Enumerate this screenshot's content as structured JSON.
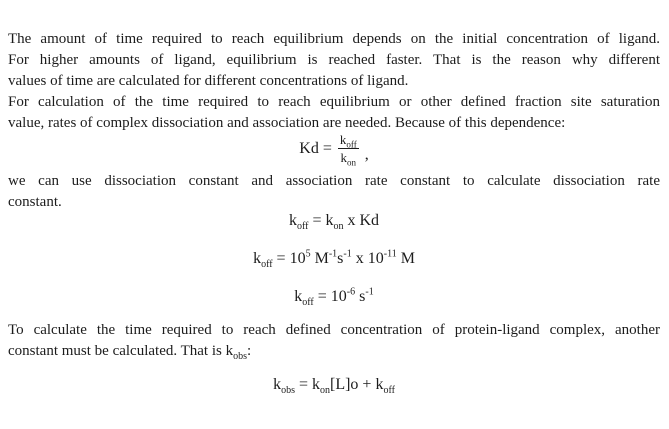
{
  "colors": {
    "background": "#ffffff",
    "text": "#1c1c1c"
  },
  "document": {
    "paragraph_1": {
      "line_1": "The amount of time required to reach equilibrium depends on the initial concentration of ligand.",
      "line_2": "For higher amounts of ligand, equilibrium is reached faster. That is the reason why different",
      "line_3": "values of time are calculated for different concentrations of ligand."
    },
    "paragraph_2": {
      "line_1": "For calculation of the time required to reach equilibrium or other defined fraction site saturation",
      "line_2": "value, rates of complex dissociation and association are needed. Because of this dependence:"
    },
    "paragraph_3": {
      "line_1": "we can use dissociation constant and association rate constant to calculate dissociation rate",
      "line_2": "constant."
    },
    "paragraph_4": {
      "line_1": "To calculate the time required to reach defined concentration of protein-ligand complex, another",
      "line_2_segments": [
        {
          "t": "constant must be calculated. That is k"
        },
        {
          "t": "obs",
          "v": "sub"
        },
        {
          "t": ":"
        }
      ]
    }
  },
  "equations": {
    "kd": {
      "lhs": "Kd =",
      "numerator_base": "k",
      "numerator_sub": "off",
      "denominator_base": "k",
      "denominator_sub": "on",
      "suffix": ","
    },
    "koff_definition": [
      {
        "t": "k"
      },
      {
        "t": "off",
        "v": "sub"
      },
      {
        "t": " = k"
      },
      {
        "t": "on",
        "v": "sub"
      },
      {
        "t": " x Kd"
      }
    ],
    "koff_numeric": [
      {
        "t": "k"
      },
      {
        "t": "off",
        "v": "sub"
      },
      {
        "t": " = 10"
      },
      {
        "t": "5",
        "v": "sup"
      },
      {
        "t": " M"
      },
      {
        "t": "-1",
        "v": "sup"
      },
      {
        "t": "s"
      },
      {
        "t": "-1",
        "v": "sup"
      },
      {
        "t": " x 10"
      },
      {
        "t": "-11",
        "v": "sup"
      },
      {
        "t": " M"
      }
    ],
    "koff_result": [
      {
        "t": "k"
      },
      {
        "t": "off",
        "v": "sub"
      },
      {
        "t": " = 10"
      },
      {
        "t": "-6",
        "v": "sup"
      },
      {
        "t": " s"
      },
      {
        "t": "-1",
        "v": "sup"
      }
    ],
    "kobs_definition": [
      {
        "t": "k"
      },
      {
        "t": "obs",
        "v": "sub"
      },
      {
        "t": " = k"
      },
      {
        "t": "on",
        "v": "sub"
      },
      {
        "t": "[L]o + k"
      },
      {
        "t": "off",
        "v": "sub"
      }
    ]
  }
}
